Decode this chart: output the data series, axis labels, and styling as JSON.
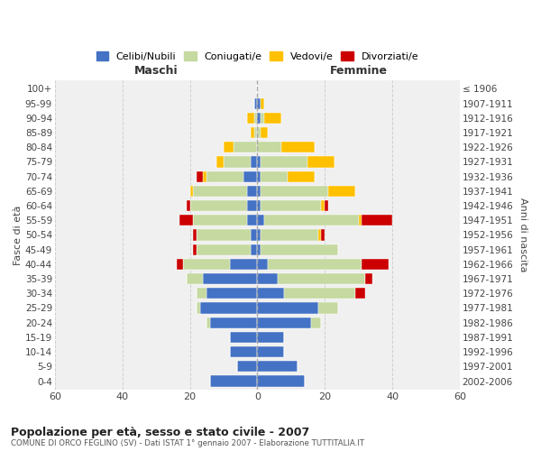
{
  "age_groups": [
    "0-4",
    "5-9",
    "10-14",
    "15-19",
    "20-24",
    "25-29",
    "30-34",
    "35-39",
    "40-44",
    "45-49",
    "50-54",
    "55-59",
    "60-64",
    "65-69",
    "70-74",
    "75-79",
    "80-84",
    "85-89",
    "90-94",
    "95-99",
    "100+"
  ],
  "birth_years": [
    "2002-2006",
    "1997-2001",
    "1992-1996",
    "1987-1991",
    "1982-1986",
    "1977-1981",
    "1972-1976",
    "1967-1971",
    "1962-1966",
    "1957-1961",
    "1952-1956",
    "1947-1951",
    "1942-1946",
    "1937-1941",
    "1932-1936",
    "1927-1931",
    "1922-1926",
    "1917-1921",
    "1912-1916",
    "1907-1911",
    "≤ 1906"
  ],
  "colors": {
    "celibi": "#4472c4",
    "coniugati": "#c5d9a0",
    "vedovi": "#ffc000",
    "divorziati": "#cc0000"
  },
  "maschi": {
    "celibi": [
      14,
      6,
      8,
      8,
      14,
      17,
      15,
      16,
      8,
      2,
      2,
      3,
      3,
      3,
      4,
      2,
      0,
      0,
      0,
      1,
      0
    ],
    "coniugati": [
      0,
      0,
      0,
      0,
      1,
      1,
      3,
      5,
      14,
      16,
      16,
      16,
      17,
      16,
      11,
      8,
      7,
      1,
      1,
      0,
      0
    ],
    "vedovi": [
      0,
      0,
      0,
      0,
      0,
      0,
      0,
      0,
      0,
      0,
      0,
      0,
      0,
      1,
      1,
      2,
      3,
      1,
      2,
      0,
      0
    ],
    "divorziati": [
      0,
      0,
      0,
      0,
      0,
      0,
      0,
      0,
      2,
      1,
      1,
      4,
      1,
      0,
      2,
      0,
      0,
      0,
      0,
      0,
      0
    ]
  },
  "femmine": {
    "celibi": [
      14,
      12,
      8,
      8,
      16,
      18,
      8,
      6,
      3,
      1,
      1,
      2,
      1,
      1,
      1,
      1,
      0,
      0,
      1,
      1,
      0
    ],
    "coniugati": [
      0,
      0,
      0,
      0,
      3,
      6,
      21,
      26,
      28,
      23,
      17,
      28,
      18,
      20,
      8,
      14,
      7,
      1,
      1,
      0,
      0
    ],
    "vedovi": [
      0,
      0,
      0,
      0,
      0,
      0,
      0,
      0,
      0,
      0,
      1,
      1,
      1,
      8,
      8,
      8,
      10,
      2,
      5,
      1,
      0
    ],
    "divorziati": [
      0,
      0,
      0,
      0,
      0,
      0,
      3,
      2,
      8,
      0,
      1,
      9,
      1,
      0,
      0,
      0,
      0,
      0,
      0,
      0,
      0
    ]
  },
  "title": "Popolazione per età, sesso e stato civile - 2007",
  "subtitle": "COMUNE DI ORCO FEGLINO (SV) - Dati ISTAT 1° gennaio 2007 - Elaborazione TUTTITALIA.IT",
  "xlabel_left": "Maschi",
  "xlabel_right": "Femmine",
  "ylabel_left": "Fasce di età",
  "ylabel_right": "Anni di nascita",
  "xlim": 60,
  "legend_labels": [
    "Celibi/Nubili",
    "Coniugati/e",
    "Vedovi/e",
    "Divorziati/e"
  ],
  "bg_color": "#f0f0f0",
  "fig_color": "#ffffff"
}
